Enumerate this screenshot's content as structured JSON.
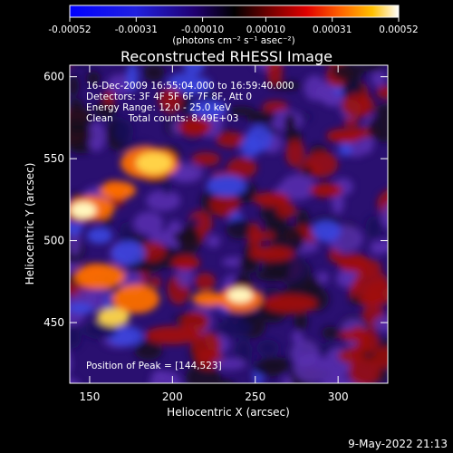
{
  "colorbar": {
    "tick_labels": [
      "-0.00052",
      "-0.00031",
      "-0.00010",
      "0.00010",
      "0.00031",
      "0.00052"
    ],
    "tick_values": [
      -0.00052,
      -0.00031,
      -0.0001,
      0.0001,
      0.00031,
      0.00052
    ],
    "range": [
      -0.00052,
      0.00052
    ],
    "units_text": "(photons cm⁻² s⁻¹ asec⁻²)"
  },
  "chart_data": {
    "type": "heatmap",
    "title": "Reconstructed RHESSI Image",
    "xlabel": "Heliocentric X (arcsec)",
    "ylabel": "Heliocentric Y (arcsec)",
    "xlim": [
      138,
      330
    ],
    "ylim": [
      413,
      607
    ],
    "x_ticks": [
      150,
      200,
      250,
      300
    ],
    "y_ticks": [
      450,
      500,
      550,
      600
    ],
    "info_lines": [
      "16-Dec-2009 16:55:04.000 to 16:59:40.000",
      "Detectors: 3F 4F 5F 6F 7F 8F, Att 0",
      "Energy Range: 12.0 - 25.0 keV",
      "Clean     Total counts: 8.49E+03"
    ],
    "peak_label": "Position of Peak = [144,523]",
    "peak_position": [
      144,
      523
    ],
    "colors": {
      "deep": "#1a0a5a",
      "violet": "#5a2fb0",
      "blue": "#3a45e0",
      "dark": "#140820",
      "red": "#a01008",
      "orange": "#ff7000",
      "yellow": "#ffd84a",
      "white": "#ffffc8"
    }
  },
  "footer_timestamp": "9-May-2022 21:13"
}
